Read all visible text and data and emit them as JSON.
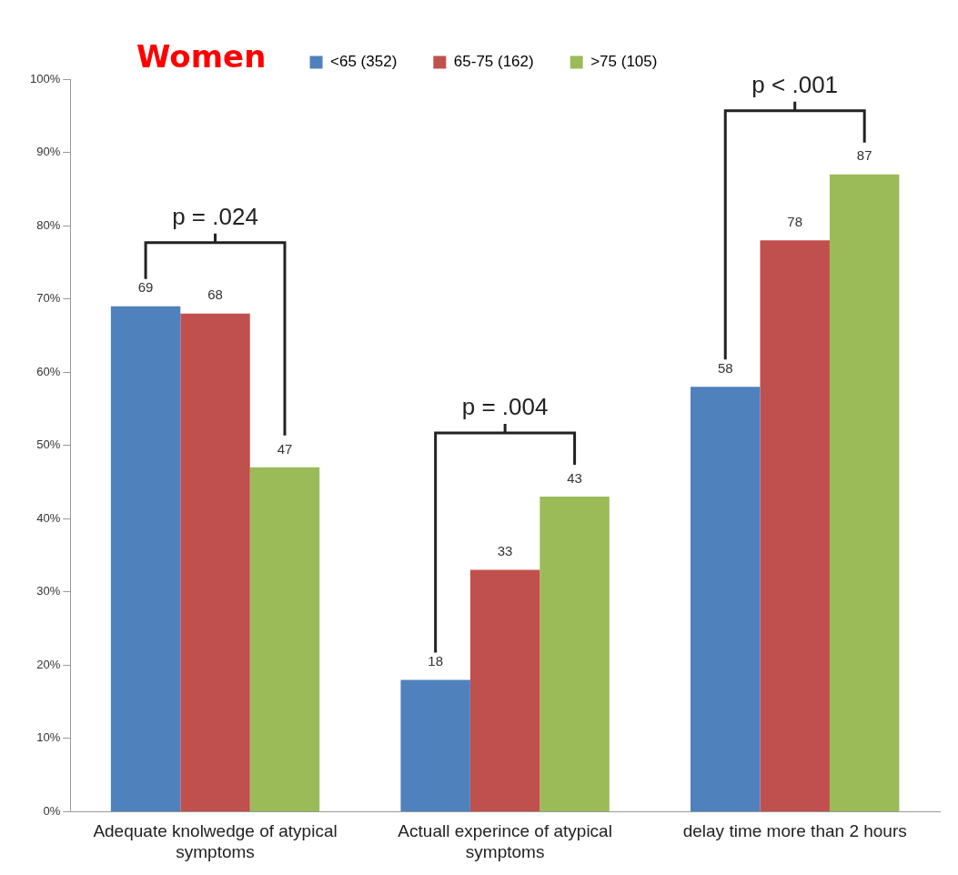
{
  "chart_data": {
    "type": "bar",
    "title": "Women",
    "categories": [
      "Adequate knolwedge of atypical symptoms",
      "Actuall experince of atypical symptoms",
      "delay time more than 2 hours"
    ],
    "series": [
      {
        "name": "<65 (352)",
        "color": "#4f81bd",
        "values": [
          69,
          18,
          58
        ]
      },
      {
        "name": "65-75 (162)",
        "color": "#c0504d",
        "values": [
          68,
          33,
          78
        ]
      },
      {
        "name": ">75 (105)",
        "color": "#9bbb59",
        "values": [
          47,
          43,
          87
        ]
      }
    ],
    "ylim": [
      0,
      100
    ],
    "yticks": [
      {
        "value": 0,
        "label": "0%"
      },
      {
        "value": 10,
        "label": "10%"
      },
      {
        "value": 20,
        "label": "20%"
      },
      {
        "value": 30,
        "label": "30%"
      },
      {
        "value": 40,
        "label": "40%"
      },
      {
        "value": 50,
        "label": "50%"
      },
      {
        "value": 60,
        "label": "60%"
      },
      {
        "value": 70,
        "label": "70%"
      },
      {
        "value": 80,
        "label": "80%"
      },
      {
        "value": 90,
        "label": "90%"
      },
      {
        "value": 100,
        "label": "100%"
      }
    ],
    "grid": false,
    "legend": "top",
    "data_labels": true,
    "annotations": [
      "p = .024",
      "p = .004",
      "p < .001"
    ]
  }
}
